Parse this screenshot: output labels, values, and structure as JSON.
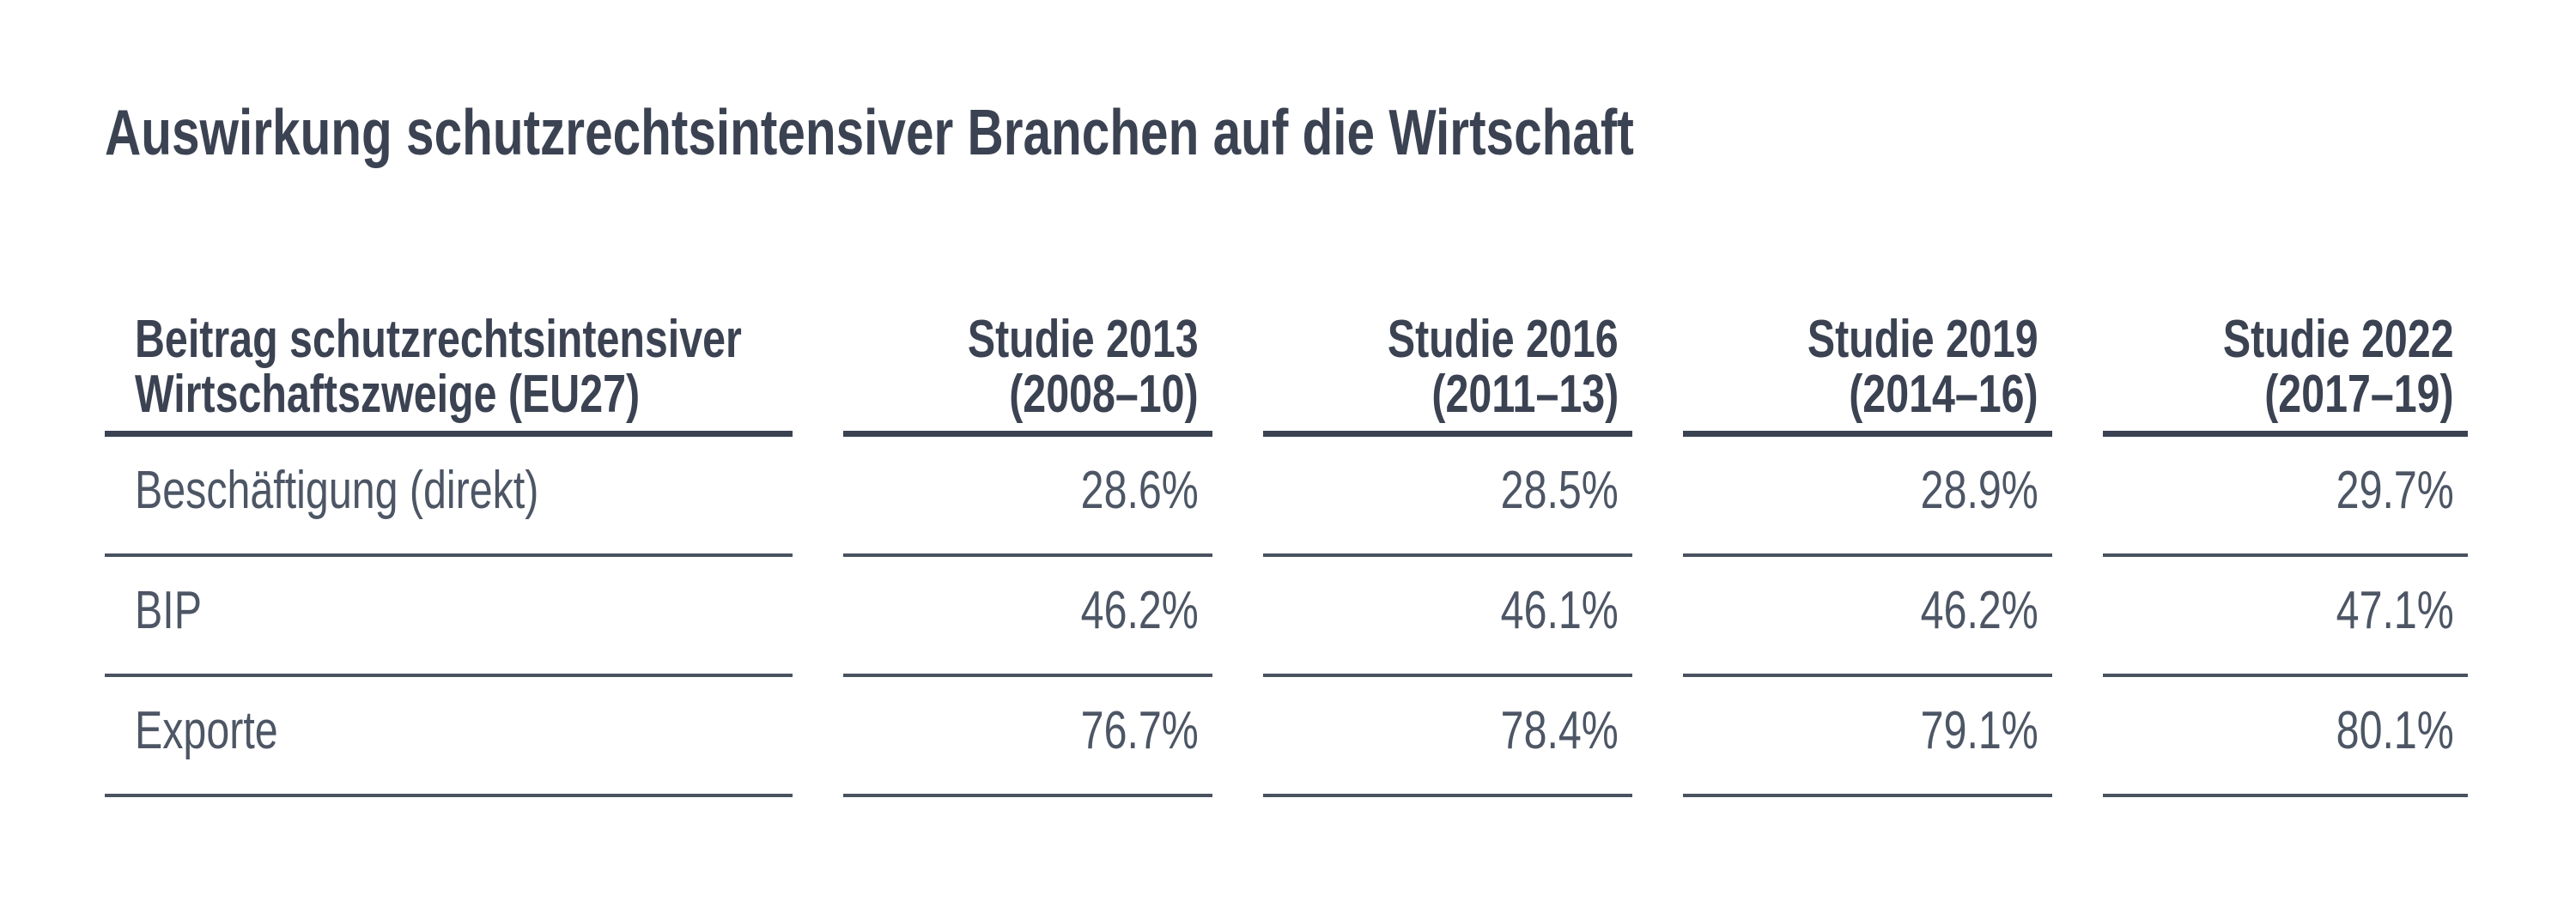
{
  "title": "Auswirkung schutzrechtsintensiver Branchen auf die Wirtschaft",
  "table": {
    "row_header": {
      "line1": "Beitrag schutzrechtsintensiver",
      "line2": "Wirtschaftszweige (EU27)"
    },
    "columns": [
      {
        "line1": "Studie 2013",
        "line2": "(2008–10)"
      },
      {
        "line1": "Studie 2016",
        "line2": "(2011–13)"
      },
      {
        "line1": "Studie 2019",
        "line2": "(2014–16)"
      },
      {
        "line1": "Studie 2022",
        "line2": "(2017–19)"
      }
    ],
    "rows": [
      {
        "label": "Beschäftigung (direkt)",
        "values": [
          "28.6%",
          "28.5%",
          "28.9%",
          "29.7%"
        ]
      },
      {
        "label": "BIP",
        "values": [
          "46.2%",
          "46.1%",
          "46.2%",
          "47.1%"
        ]
      },
      {
        "label": "Exporte",
        "values": [
          "76.7%",
          "78.4%",
          "79.1%",
          "80.1%"
        ]
      }
    ]
  },
  "colors": {
    "heading_text": "#3b4252",
    "body_text": "#4d5665",
    "header_rule": "#3b4252",
    "row_rule": "#49525f",
    "background": "#ffffff"
  },
  "chart_data": {
    "type": "table",
    "title": "Auswirkung schutzrechtsintensiver Branchen auf die Wirtschaft",
    "row_header": "Beitrag schutzrechtsintensiver Wirtschaftszweige (EU27)",
    "columns": [
      "Studie 2013 (2008–10)",
      "Studie 2016 (2011–13)",
      "Studie 2019 (2014–16)",
      "Studie 2022 (2017–19)"
    ],
    "rows": [
      {
        "label": "Beschäftigung (direkt)",
        "values_percent": [
          28.6,
          28.5,
          28.9,
          29.7
        ]
      },
      {
        "label": "BIP",
        "values_percent": [
          46.2,
          46.1,
          46.2,
          47.1
        ]
      },
      {
        "label": "Exporte",
        "values_percent": [
          76.7,
          78.4,
          79.1,
          80.1
        ]
      }
    ],
    "unit": "%"
  }
}
